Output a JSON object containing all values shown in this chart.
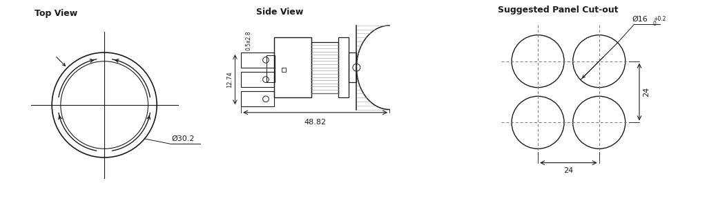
{
  "title_top_view": "Top View",
  "title_side_view": "Side View",
  "title_panel_cutout": "Suggested Panel Cut-out",
  "dim_diameter_top": "Ø30.2",
  "dim_diameter_cutout": "Ø16",
  "dim_48_82": "48.82",
  "dim_12_74": "12.74",
  "dim_terminal": "0.5x2.8",
  "dim_24_h": "24",
  "dim_24_w": "24",
  "bg_color": "#ffffff",
  "line_color": "#1a1a1a",
  "dashed_color": "#777777"
}
